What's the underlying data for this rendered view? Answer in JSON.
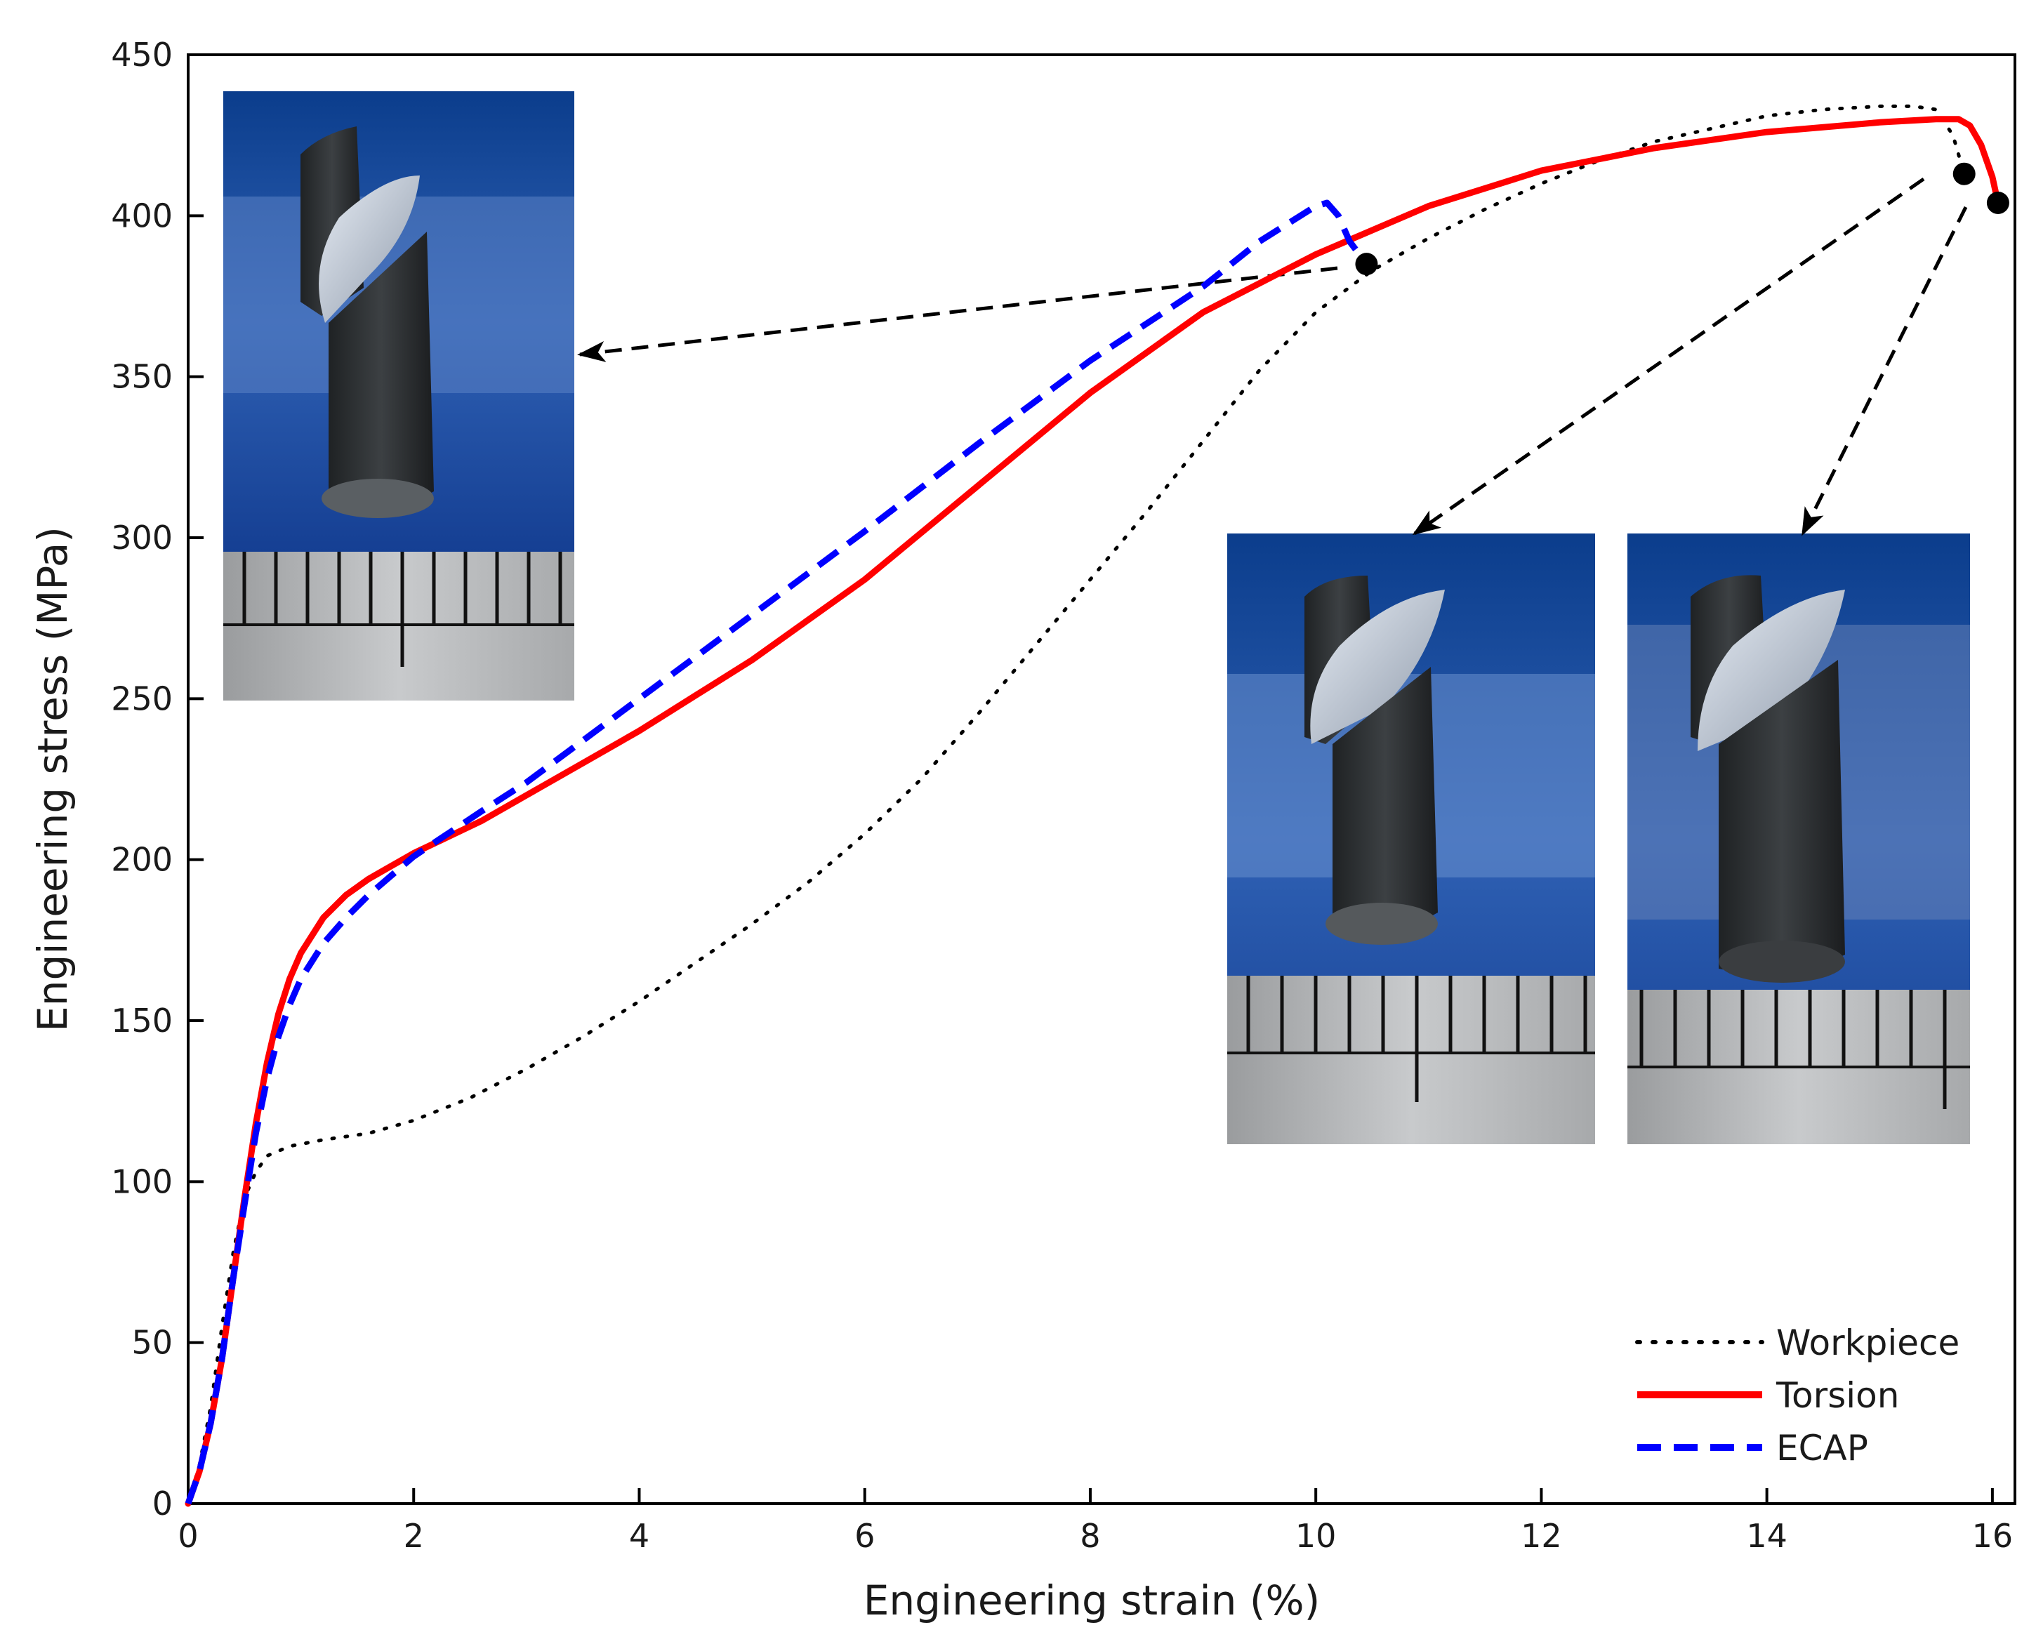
{
  "chart_data": {
    "type": "line",
    "title": "",
    "xlabel": "Engineering strain (%)",
    "ylabel": "Engineering stress (MPa)",
    "xlim": [
      0,
      16.2
    ],
    "ylim": [
      0,
      450
    ],
    "xticks": [
      0,
      2,
      4,
      6,
      8,
      10,
      12,
      14,
      16
    ],
    "yticks": [
      0,
      50,
      100,
      150,
      200,
      250,
      300,
      350,
      400,
      450
    ],
    "grid": false,
    "legend_position": "bottom-right",
    "series": [
      {
        "name": "Workpiece",
        "color": "#000000",
        "style": "dotted",
        "x": [
          0,
          0.1,
          0.2,
          0.3,
          0.4,
          0.5,
          0.6,
          0.7,
          0.9,
          1.2,
          1.6,
          2.0,
          2.5,
          3.0,
          3.5,
          4.0,
          4.5,
          5.0,
          5.5,
          6.0,
          6.5,
          7.0,
          7.5,
          8.0,
          8.5,
          9.0,
          9.5,
          10.0,
          10.5,
          11.0,
          11.5,
          12.0,
          12.5,
          13.0,
          13.5,
          14.0,
          14.5,
          15.0,
          15.3,
          15.5,
          15.65,
          15.75
        ],
        "y": [
          0,
          12,
          30,
          55,
          78,
          95,
          103,
          108,
          111,
          113,
          115,
          119,
          126,
          135,
          145,
          156,
          168,
          180,
          193,
          208,
          225,
          245,
          266,
          287,
          308,
          330,
          352,
          370,
          383,
          393,
          402,
          410,
          417,
          423,
          427,
          431,
          433,
          434,
          434,
          433,
          425,
          413
        ]
      },
      {
        "name": "Torsion",
        "color": "#ff0000",
        "style": "solid",
        "x": [
          0,
          0.1,
          0.2,
          0.3,
          0.4,
          0.5,
          0.6,
          0.7,
          0.8,
          0.9,
          1.0,
          1.2,
          1.4,
          1.6,
          1.8,
          2.0,
          2.3,
          2.6,
          3.0,
          3.5,
          4.0,
          4.5,
          5.0,
          6.0,
          7.0,
          8.0,
          9.0,
          10.0,
          11.0,
          12.0,
          13.0,
          14.0,
          15.0,
          15.5,
          15.7,
          15.8,
          15.9,
          16.0,
          16.05
        ],
        "y": [
          0,
          10,
          25,
          45,
          70,
          95,
          118,
          137,
          152,
          163,
          171,
          182,
          189,
          194,
          198,
          202,
          207,
          212,
          220,
          230,
          240,
          251,
          262,
          287,
          316,
          345,
          370,
          388,
          403,
          414,
          421,
          426,
          429,
          430,
          430,
          428,
          422,
          412,
          404
        ]
      },
      {
        "name": "ECAP",
        "color": "#0000ff",
        "style": "dashed",
        "x": [
          0,
          0.1,
          0.2,
          0.3,
          0.4,
          0.5,
          0.6,
          0.7,
          0.8,
          0.9,
          1.0,
          1.2,
          1.4,
          1.6,
          1.8,
          2.0,
          2.3,
          2.6,
          3.0,
          3.5,
          4.0,
          4.5,
          5.0,
          6.0,
          7.0,
          8.0,
          9.0,
          9.5,
          10.0,
          10.1,
          10.2,
          10.3,
          10.45
        ],
        "y": [
          0,
          10,
          25,
          45,
          70,
          93,
          115,
          132,
          145,
          155,
          163,
          174,
          182,
          189,
          195,
          201,
          208,
          215,
          224,
          237,
          250,
          263,
          276,
          302,
          329,
          355,
          378,
          392,
          403,
          404,
          400,
          392,
          385
        ]
      }
    ],
    "fracture_points": [
      {
        "series": "ECAP",
        "x": 10.45,
        "y": 385
      },
      {
        "series": "Workpiece",
        "x": 15.75,
        "y": 413
      },
      {
        "series": "Torsion",
        "x": 16.05,
        "y": 404
      }
    ]
  }
}
